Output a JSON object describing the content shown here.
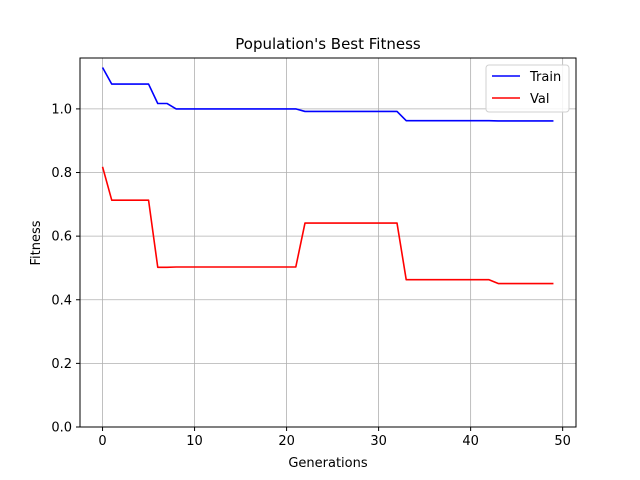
{
  "chart_data": {
    "type": "line",
    "title": "Population's Best Fitness",
    "xlabel": "Generations",
    "ylabel": "Fitness",
    "xlim": [
      -2.45,
      51.45
    ],
    "ylim": [
      0,
      1.16
    ],
    "xticks": [
      0,
      10,
      20,
      30,
      40,
      50
    ],
    "yticks": [
      0.0,
      0.2,
      0.4,
      0.6,
      0.8,
      1.0
    ],
    "xtick_labels": [
      "0",
      "10",
      "20",
      "30",
      "40",
      "50"
    ],
    "ytick_labels": [
      "0.0",
      "0.2",
      "0.4",
      "0.6",
      "0.8",
      "1.0"
    ],
    "grid": true,
    "legend_position": "top-right",
    "x": [
      0,
      1,
      2,
      3,
      4,
      5,
      6,
      7,
      8,
      9,
      10,
      11,
      12,
      13,
      14,
      15,
      16,
      17,
      18,
      19,
      20,
      21,
      22,
      23,
      24,
      25,
      26,
      27,
      28,
      29,
      30,
      31,
      32,
      33,
      34,
      35,
      36,
      37,
      38,
      39,
      40,
      41,
      42,
      43,
      44,
      45,
      46,
      47,
      48,
      49
    ],
    "series": [
      {
        "name": "Train",
        "color": "#0000ff",
        "values": [
          1.13,
          1.078,
          1.078,
          1.078,
          1.078,
          1.078,
          1.017,
          1.017,
          1.0,
          1.0,
          1.0,
          1.0,
          1.0,
          1.0,
          1.0,
          1.0,
          1.0,
          1.0,
          1.0,
          1.0,
          1.0,
          1.0,
          0.992,
          0.992,
          0.992,
          0.992,
          0.992,
          0.992,
          0.992,
          0.992,
          0.992,
          0.992,
          0.992,
          0.963,
          0.963,
          0.963,
          0.963,
          0.963,
          0.963,
          0.963,
          0.963,
          0.963,
          0.963,
          0.962,
          0.962,
          0.962,
          0.962,
          0.962,
          0.962,
          0.962
        ]
      },
      {
        "name": "Val",
        "color": "#ff0000",
        "values": [
          0.818,
          0.713,
          0.713,
          0.713,
          0.713,
          0.713,
          0.502,
          0.502,
          0.503,
          0.503,
          0.503,
          0.503,
          0.503,
          0.503,
          0.503,
          0.503,
          0.503,
          0.503,
          0.503,
          0.503,
          0.503,
          0.503,
          0.641,
          0.641,
          0.641,
          0.641,
          0.641,
          0.641,
          0.641,
          0.641,
          0.641,
          0.641,
          0.641,
          0.463,
          0.463,
          0.463,
          0.463,
          0.463,
          0.463,
          0.463,
          0.463,
          0.463,
          0.463,
          0.451,
          0.451,
          0.451,
          0.451,
          0.451,
          0.451,
          0.451
        ]
      }
    ]
  }
}
